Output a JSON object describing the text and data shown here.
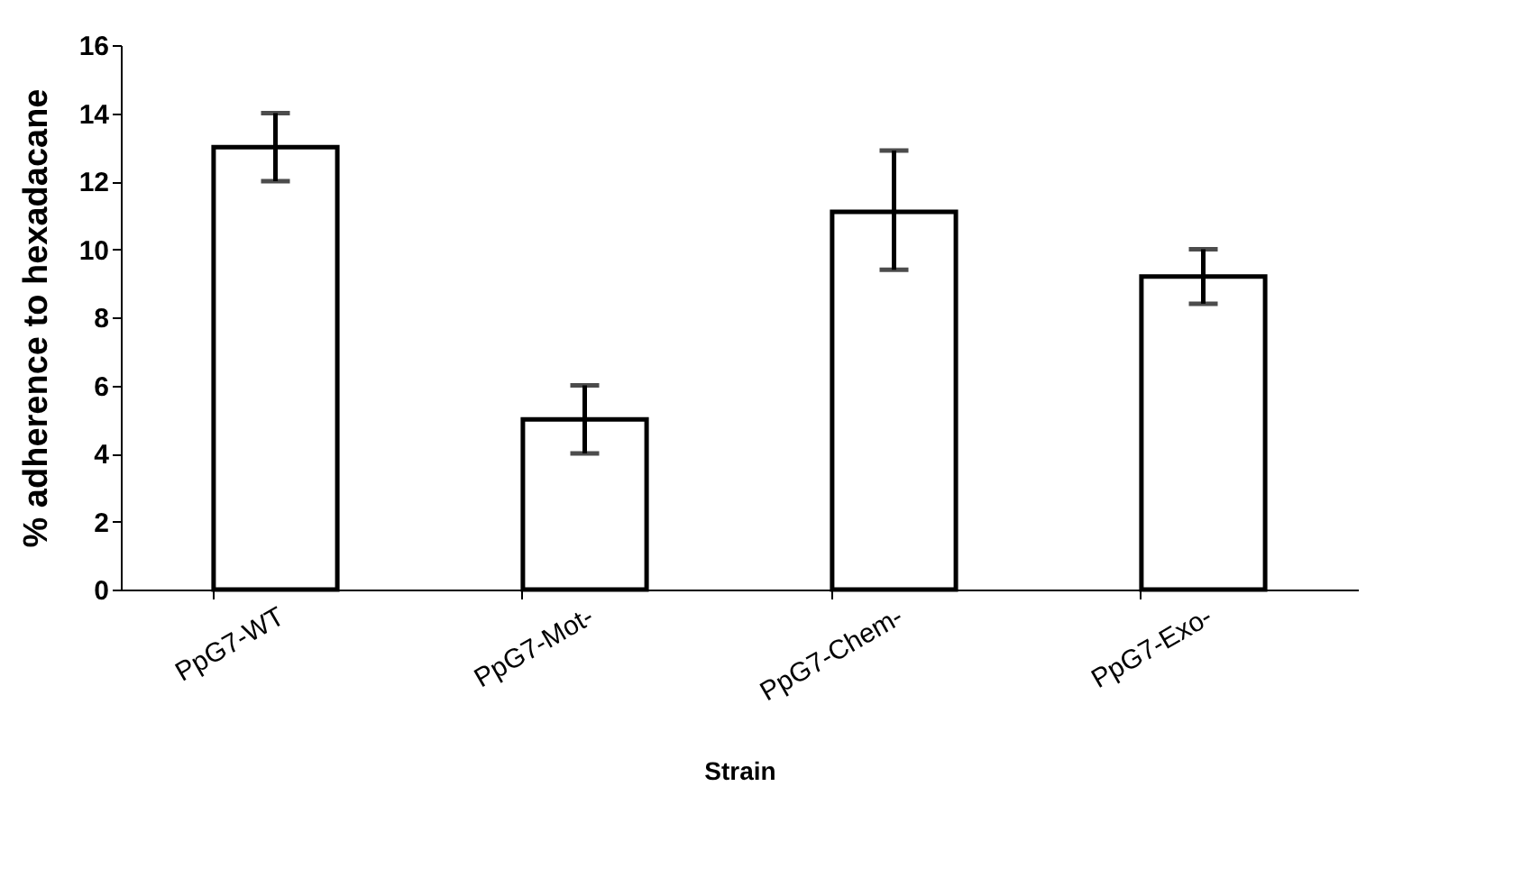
{
  "chart_data": {
    "type": "bar",
    "xlabel": "Strain",
    "ylabel": "% adherence to hexadacane",
    "categories": [
      "PpG7-WT",
      "PpG7-Mot-",
      "PpG7-Chem-",
      "PpG7-Exo-"
    ],
    "values": [
      13,
      5,
      11.1,
      9.2
    ],
    "errors": [
      [
        12,
        14
      ],
      [
        4,
        6
      ],
      [
        9.4,
        12.9
      ],
      [
        8.4,
        10
      ]
    ],
    "color": "#ffffff",
    "ylim": [
      0,
      16
    ],
    "yticks": [
      0,
      2,
      4,
      6,
      8,
      10,
      12,
      14,
      16
    ],
    "grid": false
  }
}
